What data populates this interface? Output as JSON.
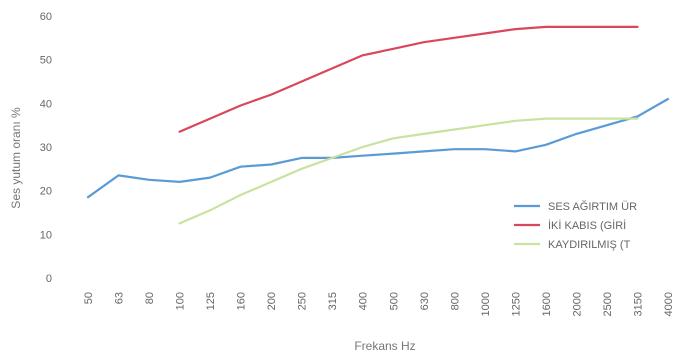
{
  "chart_data": {
    "type": "line",
    "title": "",
    "xlabel": "Frekans Hz",
    "ylabel": "Ses yutum oranı %",
    "ylim": [
      0,
      60
    ],
    "y_ticks": [
      "0",
      "10",
      "20",
      "30",
      "40",
      "50",
      "60"
    ],
    "categories": [
      "50",
      "63",
      "80",
      "100",
      "125",
      "160",
      "200",
      "250",
      "315",
      "400",
      "500",
      "630",
      "800",
      "1000",
      "1250",
      "1600",
      "2000",
      "2500",
      "3150",
      "4000"
    ],
    "grid": false,
    "legend_position": "right",
    "series": [
      {
        "name": "SES AĞIRTIM ÜR",
        "color": "#5b9bd5",
        "values": [
          18.5,
          23.5,
          22.5,
          22,
          23,
          25.5,
          26,
          27.5,
          27.5,
          28,
          28.5,
          29,
          29.5,
          29.5,
          29,
          30.5,
          33,
          35,
          37,
          41
        ]
      },
      {
        "name": "İKİ KABIS (GİRİ",
        "color": "#d9475c",
        "values": [
          null,
          null,
          null,
          33.5,
          36.5,
          39.5,
          42,
          45,
          48,
          51,
          52.5,
          54,
          55,
          56,
          57,
          57.5,
          57.5,
          57.5,
          57.5,
          null
        ]
      },
      {
        "name": "KAYDIRILMIŞ (T",
        "color": "#c8e2a0",
        "values": [
          null,
          null,
          null,
          12.5,
          15.5,
          19,
          22,
          25,
          27.5,
          30,
          32,
          33,
          34,
          35,
          36,
          36.5,
          36.5,
          36.5,
          36.5,
          null
        ]
      }
    ]
  }
}
